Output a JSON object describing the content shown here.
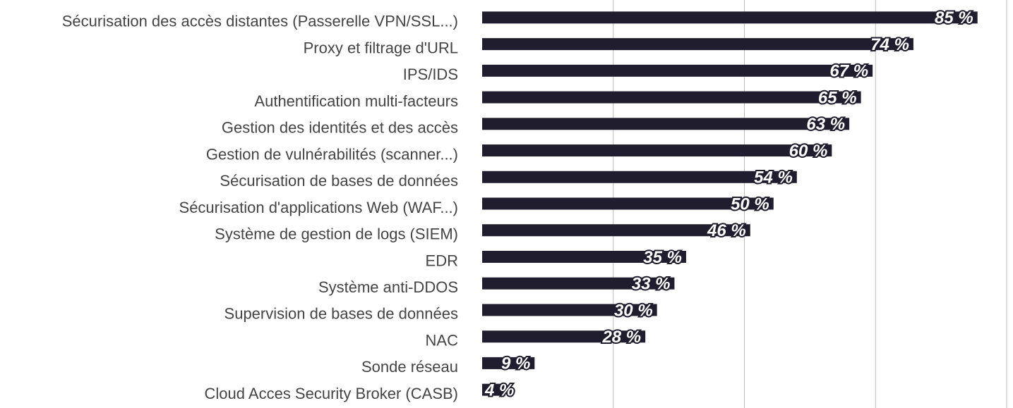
{
  "chart_data": {
    "type": "hbar",
    "categories": [
      "Sécurisation des accès distantes (Passerelle VPN/SSL...)",
      "Proxy et filtrage d'URL",
      "IPS/IDS",
      "Authentification multi-facteurs",
      "Gestion des identités et des accès",
      "Gestion de vulnérabilités (scanner...)",
      "Sécurisation de bases de données",
      "Sécurisation d'applications Web (WAF...)",
      "Système de gestion de logs (SIEM)",
      "EDR",
      "Système anti-DDOS",
      "Supervision de bases de données",
      "NAC",
      "Sonde réseau",
      "Cloud Acces Security Broker (CASB)"
    ],
    "values": [
      85,
      74,
      67,
      65,
      63,
      60,
      54,
      50,
      46,
      35,
      33,
      30,
      28,
      9,
      4
    ],
    "value_labels": [
      "85 %",
      "74 %",
      "67 %",
      "65 %",
      "63 %",
      "60 %",
      "54 %",
      "50 %",
      "46 %",
      "35 %",
      "33 %",
      "30 %",
      "28 %",
      "9 %",
      "4 %"
    ],
    "color": "#1f1d2e",
    "xlim": [
      0,
      90
    ],
    "xticks": [
      22.5,
      45,
      67.5,
      90
    ],
    "grid": true
  }
}
